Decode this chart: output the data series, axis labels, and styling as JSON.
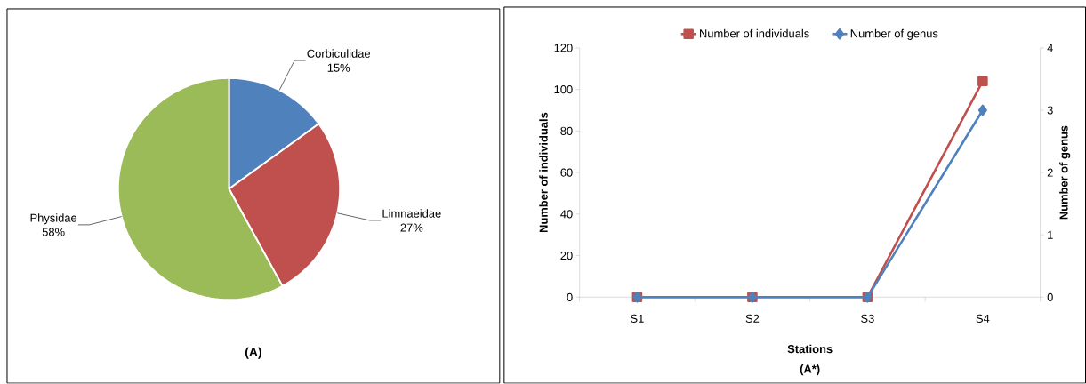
{
  "chart_data": [
    {
      "type": "pie",
      "categories": [
        "Corbiculidae",
        "Limnaeidae",
        "Physidae"
      ],
      "values": [
        15,
        27,
        58
      ],
      "colors": [
        "#4f81bd",
        "#c0504d",
        "#9bbb59"
      ],
      "value_labels": [
        "15%",
        "27%",
        "58%"
      ],
      "annotations": [
        "(A)"
      ]
    },
    {
      "type": "line",
      "categories": [
        "S1",
        "S2",
        "S3",
        "S4"
      ],
      "xlabel": "Stations",
      "ylabel": "Number of individuals",
      "y2label": "Number of genus",
      "annotations": [
        "(A*)"
      ],
      "series": [
        {
          "name": "Number of individuals",
          "color": "#c0504d",
          "marker": "square",
          "values": [
            0,
            0,
            0,
            104
          ]
        },
        {
          "name": "Number of genus",
          "color": "#4f81bd",
          "marker": "diamond",
          "axis": "y2",
          "values": [
            0,
            0,
            0,
            3
          ]
        }
      ],
      "ylim": [
        0,
        120
      ],
      "yticks": [
        0,
        20,
        40,
        60,
        80,
        100,
        120
      ],
      "y2lim": [
        0,
        4
      ],
      "y2ticks": [
        0,
        1,
        2,
        3,
        4
      ],
      "legend": "top",
      "grid": false
    }
  ]
}
